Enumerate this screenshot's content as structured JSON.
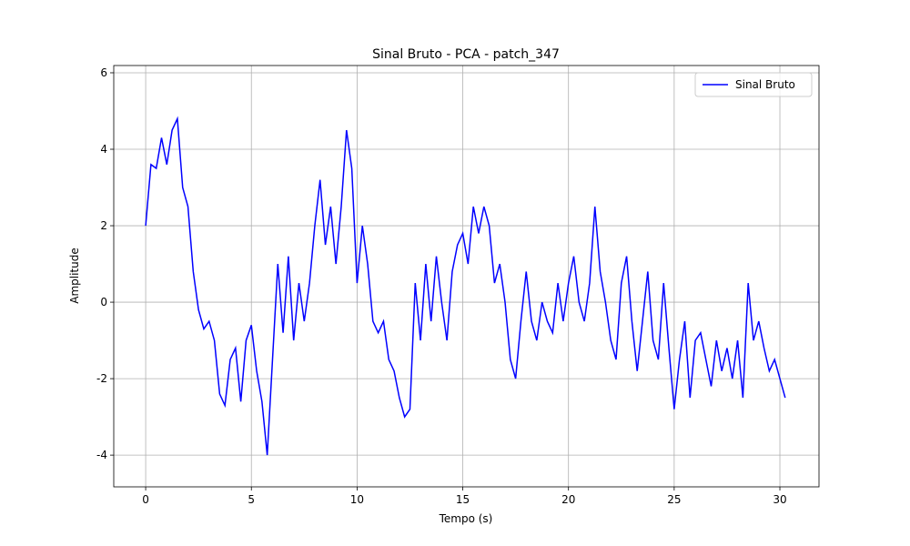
{
  "chart_data": {
    "type": "line",
    "title": "Sinal Bruto - PCA - patch_347",
    "xlabel": "Tempo (s)",
    "ylabel": "Amplitude",
    "x": [
      0,
      0.25,
      0.5,
      0.75,
      1,
      1.25,
      1.5,
      1.75,
      2,
      2.25,
      2.5,
      2.75,
      3,
      3.25,
      3.5,
      3.75,
      4,
      4.25,
      4.5,
      4.75,
      5,
      5.25,
      5.5,
      5.75,
      6,
      6.25,
      6.5,
      6.75,
      7,
      7.25,
      7.5,
      7.75,
      8,
      8.25,
      8.5,
      8.75,
      9,
      9.25,
      9.5,
      9.75,
      10,
      10.25,
      10.5,
      10.75,
      11,
      11.25,
      11.5,
      11.75,
      12,
      12.25,
      12.5,
      12.75,
      13,
      13.25,
      13.5,
      13.75,
      14,
      14.25,
      14.5,
      14.75,
      15,
      15.25,
      15.5,
      15.75,
      16,
      16.25,
      16.5,
      16.75,
      17,
      17.25,
      17.5,
      17.75,
      18,
      18.25,
      18.5,
      18.75,
      19,
      19.25,
      19.5,
      19.75,
      20,
      20.25,
      20.5,
      20.75,
      21,
      21.25,
      21.5,
      21.75,
      22,
      22.25,
      22.5,
      22.75,
      23,
      23.25,
      23.5,
      23.75,
      24,
      24.25,
      24.5,
      24.75,
      25,
      25.25,
      25.5,
      25.75,
      26,
      26.25,
      26.5,
      26.75,
      27,
      27.25,
      27.5,
      27.75,
      28,
      28.25,
      28.5,
      28.75,
      29,
      29.25,
      29.5,
      29.75,
      30,
      30.25
    ],
    "series": [
      {
        "name": "Sinal Bruto",
        "color": "#0000ff",
        "values": [
          2.0,
          3.6,
          3.5,
          4.3,
          3.6,
          4.5,
          4.8,
          3.0,
          2.5,
          0.8,
          -0.2,
          -0.7,
          -0.5,
          -1.0,
          -2.4,
          -2.7,
          -1.5,
          -1.2,
          -2.6,
          -1.0,
          -0.6,
          -1.8,
          -2.6,
          -4.0,
          -1.5,
          1.0,
          -0.8,
          1.2,
          -1.0,
          0.5,
          -0.5,
          0.5,
          2.0,
          3.2,
          1.5,
          2.5,
          1.0,
          2.5,
          4.5,
          3.5,
          0.5,
          2.0,
          1.0,
          -0.5,
          -0.8,
          -0.5,
          -1.5,
          -1.8,
          -2.5,
          -3.0,
          -2.8,
          0.5,
          -1.0,
          1.0,
          -0.5,
          1.2,
          0.0,
          -1.0,
          0.8,
          1.5,
          1.8,
          1.0,
          2.5,
          1.8,
          2.5,
          2.0,
          0.5,
          1.0,
          0.0,
          -1.5,
          -2.0,
          -0.5,
          0.8,
          -0.5,
          -1.0,
          0.0,
          -0.5,
          -0.8,
          0.5,
          -0.5,
          0.5,
          1.2,
          0.0,
          -0.5,
          0.5,
          2.5,
          0.8,
          0.0,
          -1.0,
          -1.5,
          0.5,
          1.2,
          -0.5,
          -1.8,
          -0.5,
          0.8,
          -1.0,
          -1.5,
          0.5,
          -1.2,
          -2.8,
          -1.5,
          -0.5,
          -2.5,
          -1.0,
          -0.8,
          -1.5,
          -2.2,
          -1.0,
          -1.8,
          -1.2,
          -2.0,
          -1.0,
          -2.5,
          0.5,
          -1.0,
          -0.5,
          -1.2,
          -1.8,
          -1.5,
          -2.0,
          -2.5
        ]
      }
    ],
    "xlim": [
      -1.51,
      31.85
    ],
    "ylim": [
      -4.83,
      6.19
    ],
    "xticks": [
      0,
      5,
      10,
      15,
      20,
      25,
      30
    ],
    "yticks": [
      -4,
      -2,
      0,
      2,
      4,
      6
    ],
    "grid": true,
    "legend": "upper right"
  }
}
